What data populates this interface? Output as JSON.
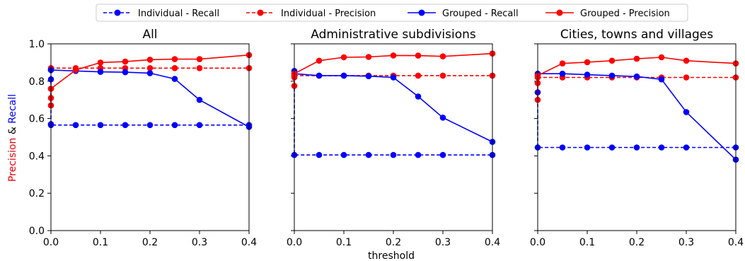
{
  "chart_data": {
    "type": "line",
    "xlabel": "threshold",
    "ylabel_parts": [
      {
        "text": "Precision",
        "color": "#e8000b"
      },
      {
        "text": " & ",
        "color": "#000000"
      },
      {
        "text": "Recall",
        "color": "#0000ff"
      }
    ],
    "xticks": [
      "0.0",
      "0.1",
      "0.2",
      "0.3",
      "0.4"
    ],
    "yticks": [
      "0.0",
      "0.2",
      "0.4",
      "0.6",
      "0.8",
      "1.0"
    ],
    "xlim": [
      0,
      0.4
    ],
    "ylim": [
      0,
      1
    ],
    "legend": [
      {
        "name": "Individual - Recall",
        "color": "#0000ff",
        "dashed": true
      },
      {
        "name": "Individual - Precision",
        "color": "#ff0000",
        "dashed": true
      },
      {
        "name": "Grouped - Recall",
        "color": "#0000ff",
        "dashed": false
      },
      {
        "name": "Grouped - Precision",
        "color": "#ff0000",
        "dashed": false
      }
    ],
    "panels": [
      {
        "title": "All",
        "series": [
          {
            "name": "Individual - Recall",
            "x": [
              0,
              0,
              0,
              0,
              0.05,
              0.1,
              0.15,
              0.2,
              0.25,
              0.3,
              0.4
            ],
            "y": [
              0.86,
              0.81,
              0.57,
              0.565,
              0.565,
              0.565,
              0.565,
              0.565,
              0.565,
              0.565,
              0.565
            ]
          },
          {
            "name": "Individual - Precision",
            "x": [
              0,
              0.05,
              0.1,
              0.15,
              0.2,
              0.25,
              0.3,
              0.4
            ],
            "y": [
              0.87,
              0.87,
              0.87,
              0.87,
              0.87,
              0.87,
              0.87,
              0.87
            ]
          },
          {
            "name": "Grouped - Recall",
            "x": [
              0,
              0.05,
              0.1,
              0.15,
              0.2,
              0.25,
              0.3,
              0.4
            ],
            "y": [
              0.86,
              0.855,
              0.85,
              0.848,
              0.843,
              0.812,
              0.7,
              0.555
            ]
          },
          {
            "name": "Grouped - Precision",
            "x": [
              0,
              0,
              0,
              0,
              0.05,
              0.1,
              0.15,
              0.2,
              0.25,
              0.3,
              0.4
            ],
            "y": [
              0.67,
              0.71,
              0.76,
              0.76,
              0.86,
              0.9,
              0.905,
              0.915,
              0.918,
              0.918,
              0.94
            ]
          }
        ]
      },
      {
        "title": "Administrative subdivisions",
        "series": [
          {
            "name": "Individual - Recall",
            "x": [
              0,
              0,
              0.05,
              0.1,
              0.15,
              0.2,
              0.25,
              0.3,
              0.4
            ],
            "y": [
              0.855,
              0.405,
              0.405,
              0.405,
              0.405,
              0.405,
              0.405,
              0.405,
              0.405
            ]
          },
          {
            "name": "Individual - Precision",
            "x": [
              0,
              0.05,
              0.1,
              0.15,
              0.2,
              0.25,
              0.3,
              0.4
            ],
            "y": [
              0.83,
              0.83,
              0.83,
              0.83,
              0.83,
              0.83,
              0.83,
              0.83
            ]
          },
          {
            "name": "Grouped - Recall",
            "x": [
              0,
              0.05,
              0.1,
              0.15,
              0.2,
              0.25,
              0.3,
              0.4
            ],
            "y": [
              0.84,
              0.83,
              0.83,
              0.827,
              0.82,
              0.718,
              0.605,
              0.475
            ]
          },
          {
            "name": "Grouped - Precision",
            "x": [
              0,
              0,
              0,
              0.05,
              0.1,
              0.15,
              0.2,
              0.25,
              0.3,
              0.4
            ],
            "y": [
              0.775,
              0.82,
              0.84,
              0.91,
              0.928,
              0.93,
              0.938,
              0.937,
              0.933,
              0.948
            ]
          }
        ]
      },
      {
        "title": "Cities, towns and villages",
        "series": [
          {
            "name": "Individual - Recall",
            "x": [
              0,
              0,
              0.05,
              0.1,
              0.15,
              0.2,
              0.25,
              0.3,
              0.4
            ],
            "y": [
              0.74,
              0.445,
              0.445,
              0.445,
              0.445,
              0.445,
              0.445,
              0.445,
              0.445
            ]
          },
          {
            "name": "Individual - Precision",
            "x": [
              0,
              0.05,
              0.1,
              0.15,
              0.2,
              0.25,
              0.3,
              0.4
            ],
            "y": [
              0.82,
              0.82,
              0.82,
              0.82,
              0.82,
              0.82,
              0.82,
              0.82
            ]
          },
          {
            "name": "Grouped - Recall",
            "x": [
              0,
              0.05,
              0.1,
              0.15,
              0.2,
              0.25,
              0.3,
              0.4
            ],
            "y": [
              0.84,
              0.84,
              0.835,
              0.83,
              0.825,
              0.81,
              0.635,
              0.38
            ]
          },
          {
            "name": "Grouped - Precision",
            "x": [
              0,
              0,
              0,
              0.05,
              0.1,
              0.15,
              0.2,
              0.25,
              0.3,
              0.4
            ],
            "y": [
              0.7,
              0.79,
              0.83,
              0.895,
              0.902,
              0.91,
              0.92,
              0.928,
              0.91,
              0.895
            ]
          }
        ]
      }
    ]
  }
}
